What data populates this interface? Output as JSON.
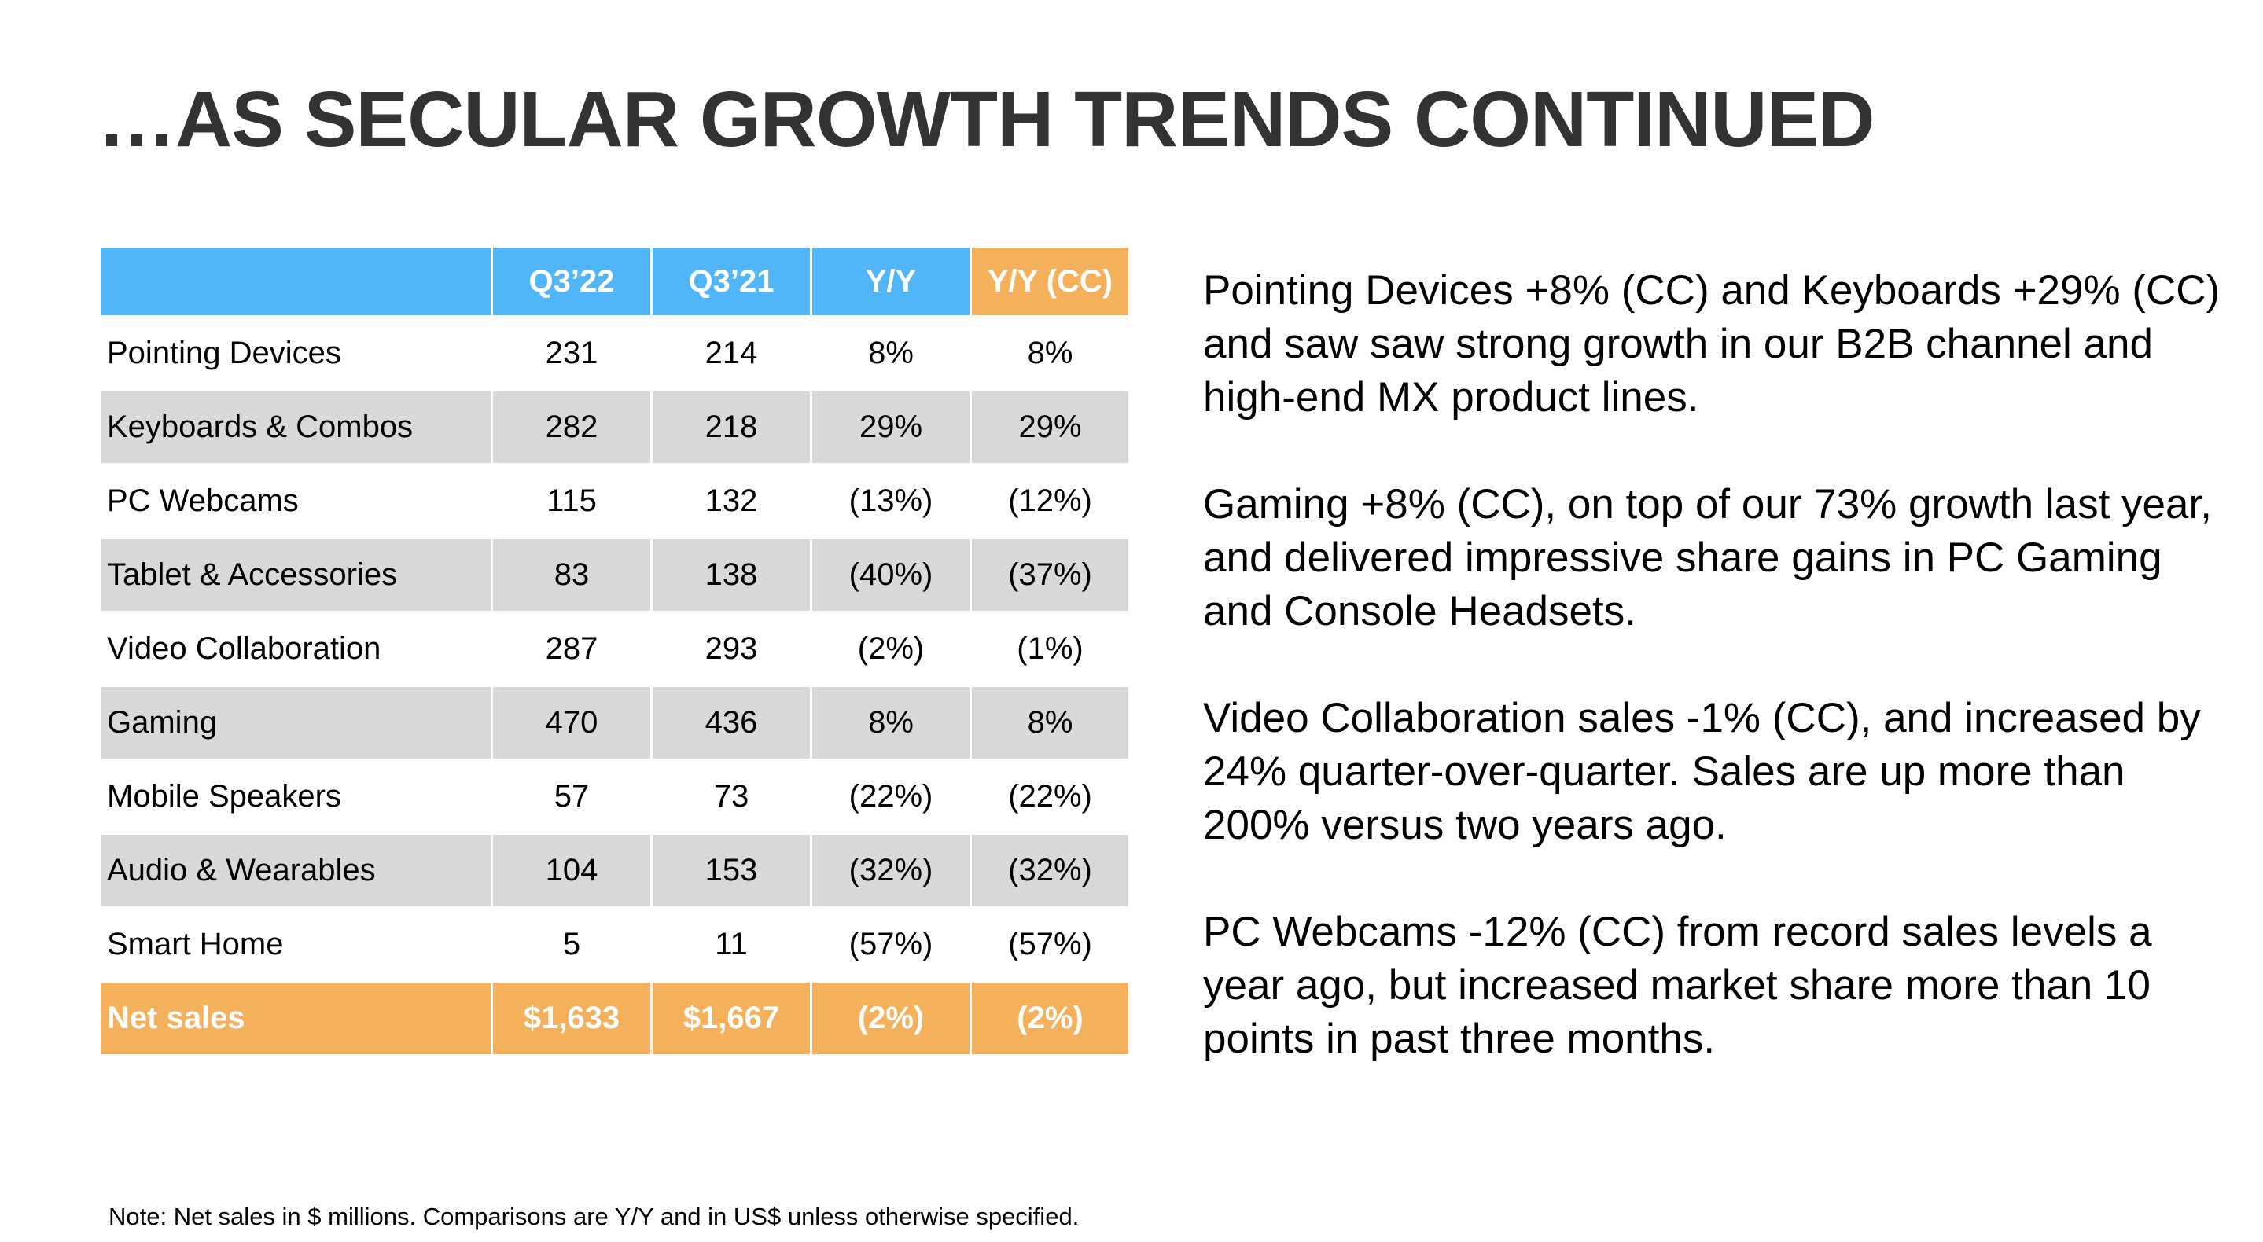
{
  "title": "…AS SECULAR GROWTH TRENDS CONTINUED",
  "colors": {
    "header_blue": "#51B6F7",
    "accent_orange": "#F4B05A",
    "row_gray": "#D9D9D9"
  },
  "table": {
    "headers": [
      "",
      "Q3’22",
      "Q3’21",
      "Y/Y",
      "Y/Y (CC)"
    ],
    "rows": [
      [
        "Pointing Devices",
        "231",
        "214",
        "8%",
        "8%"
      ],
      [
        "Keyboards & Combos",
        "282",
        "218",
        "29%",
        "29%"
      ],
      [
        "PC Webcams",
        "115",
        "132",
        "(13%)",
        "(12%)"
      ],
      [
        "Tablet & Accessories",
        "83",
        "138",
        "(40%)",
        "(37%)"
      ],
      [
        "Video Collaboration",
        "287",
        "293",
        "(2%)",
        "(1%)"
      ],
      [
        "Gaming",
        "470",
        "436",
        "8%",
        "8%"
      ],
      [
        "Mobile Speakers",
        "57",
        "73",
        "(22%)",
        "(22%)"
      ],
      [
        "Audio & Wearables",
        "104",
        "153",
        "(32%)",
        "(32%)"
      ],
      [
        "Smart Home",
        "5",
        "11",
        "(57%)",
        "(57%)"
      ]
    ],
    "total": [
      "Net sales",
      "$1,633",
      "$1,667",
      "(2%)",
      "(2%)"
    ]
  },
  "commentary": [
    "Pointing Devices +8% (CC) and Keyboards +29% (CC) and saw saw strong growth in our B2B channel and high-end MX product lines.",
    "Gaming +8% (CC), on top of our 73% growth last year, and delivered impressive share gains in PC Gaming and Console Headsets.",
    "Video Collaboration sales -1% (CC), and increased by 24% quarter-over-quarter. Sales are up more than 200% versus two years ago.",
    "PC Webcams -12% (CC) from record sales levels a year ago, but increased market share more than 10 points in past three months."
  ],
  "note": "Note:  Net sales in $ millions. Comparisons are Y/Y and in US$ unless otherwise specified."
}
